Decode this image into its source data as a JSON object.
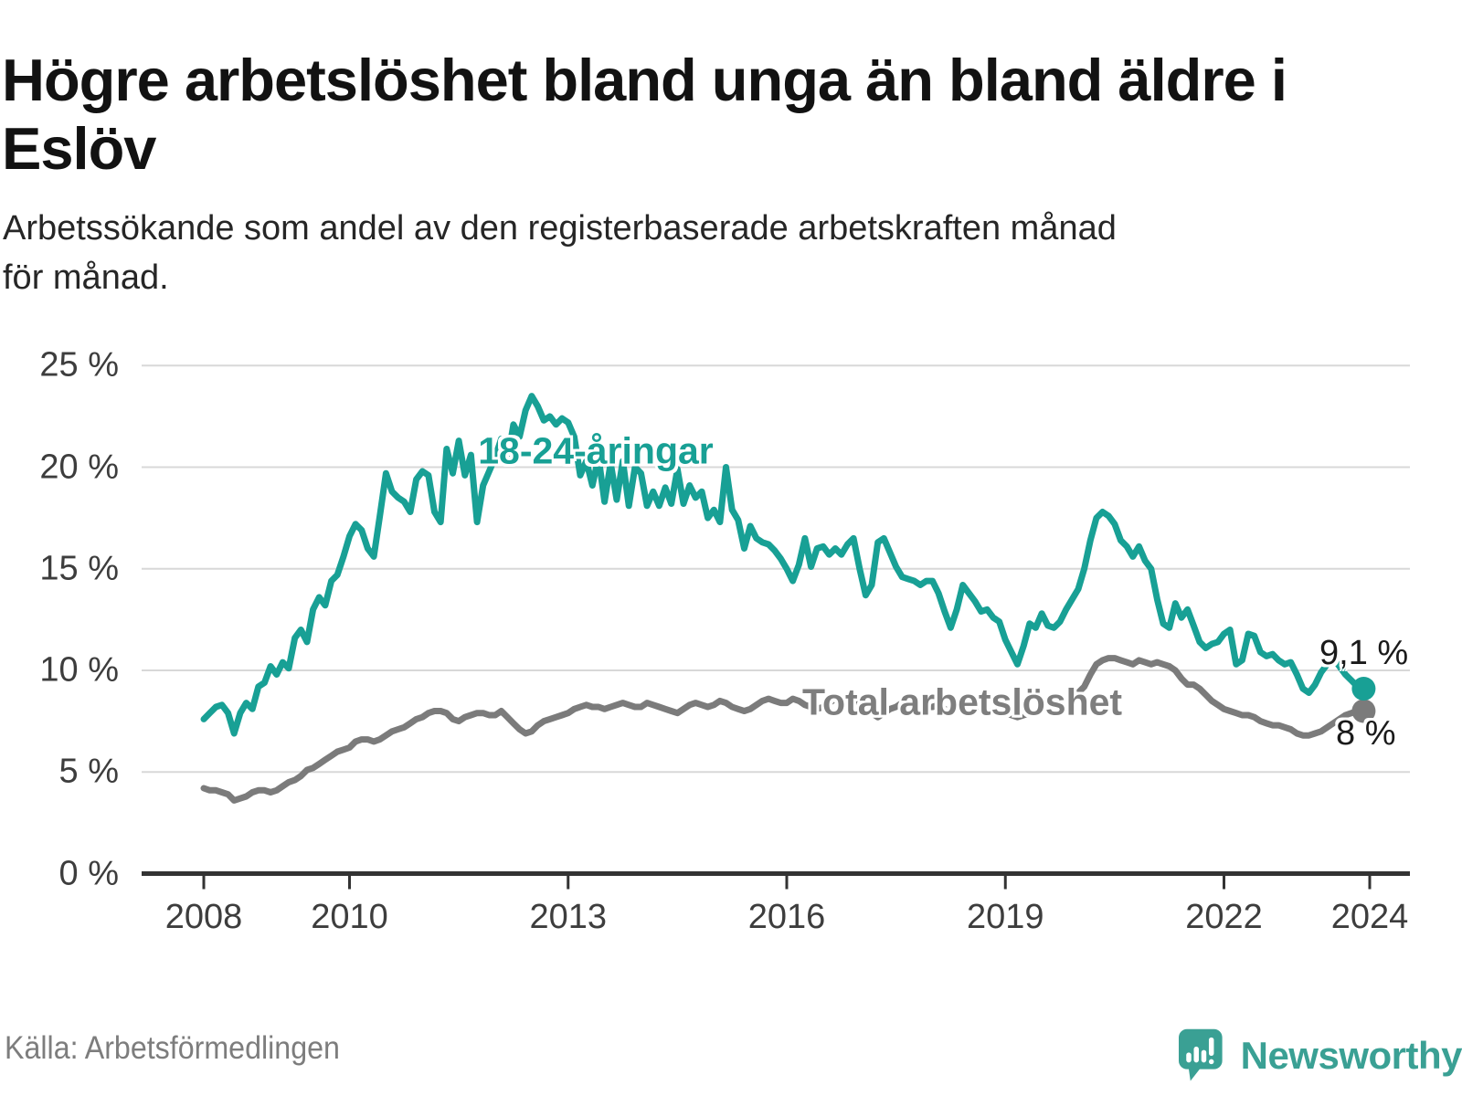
{
  "title": "Högre arbetslöshet bland unga än bland äldre i\nEslöv",
  "subtitle": "Arbetssökande som andel av den registerbaserade arbetskraften månad\nför månad.",
  "source": "Källa: Arbetsförmedlingen",
  "logo": {
    "text": "Newsworthy",
    "icon": "newsworthy-speech-bubble-bar-chart-icon"
  },
  "colors": {
    "young_line": "#18a095",
    "total_line": "#7b7b7b",
    "logo_teal": "#3aa094",
    "gridline": "#d8d8d8",
    "axis": "#333333",
    "tick_text": "#3d3d3d",
    "end_label_text": "#1a1a1a",
    "title_text": "#121212",
    "source_text": "#7d7d7d"
  },
  "chart_data": {
    "type": "line",
    "title": "Högre arbetslöshet bland unga än bland äldre i Eslöv",
    "xlabel": "",
    "ylabel": "",
    "x_unit": "month",
    "x_start": "2008-01",
    "x_end": "2023-12",
    "ylim": [
      0,
      25
    ],
    "xlim_years": [
      2007.15,
      2024.55
    ],
    "grid": "horizontal",
    "legend_position": "inline-labels",
    "y_tick_values": [
      0,
      5,
      10,
      15,
      20,
      25
    ],
    "y_tick_labels": [
      "0 %",
      "5 %",
      "10 %",
      "15 %",
      "20 %",
      "25 %"
    ],
    "x_tick_values": [
      2008,
      2010,
      2013,
      2016,
      2019,
      2022,
      2024
    ],
    "x_tick_labels": [
      "2008",
      "2010",
      "2013",
      "2016",
      "2019",
      "2022",
      "2024"
    ],
    "series": [
      {
        "name": "18-24-åringar",
        "color": "#18a095",
        "end_label": "9,1 %",
        "end_value": 9.1,
        "values": [
          7.6,
          7.9,
          8.2,
          8.3,
          7.9,
          6.9,
          7.9,
          8.4,
          8.1,
          9.2,
          9.4,
          10.2,
          9.8,
          10.4,
          10.1,
          11.6,
          12.0,
          11.4,
          13.0,
          13.6,
          13.2,
          14.4,
          14.7,
          15.6,
          16.6,
          17.2,
          16.9,
          16.0,
          15.6,
          17.6,
          19.7,
          18.8,
          18.5,
          18.3,
          17.8,
          19.4,
          19.8,
          19.6,
          17.8,
          17.3,
          20.9,
          19.7,
          21.3,
          19.6,
          20.6,
          17.3,
          19.1,
          19.8,
          20.5,
          21.4,
          20.3,
          22.1,
          21.5,
          22.8,
          23.5,
          23.0,
          22.3,
          22.5,
          22.1,
          22.4,
          22.2,
          21.5,
          19.6,
          20.3,
          19.1,
          20.5,
          18.3,
          20.2,
          18.4,
          20.3,
          18.1,
          20.0,
          19.7,
          18.1,
          18.8,
          18.1,
          19.0,
          18.2,
          19.9,
          18.2,
          19.1,
          18.5,
          18.8,
          17.5,
          17.9,
          17.3,
          20.0,
          17.9,
          17.4,
          16.0,
          17.1,
          16.5,
          16.3,
          16.2,
          15.9,
          15.5,
          15.0,
          14.4,
          15.2,
          16.5,
          15.1,
          16.0,
          16.1,
          15.7,
          16.0,
          15.7,
          16.2,
          16.5,
          15.0,
          13.7,
          14.2,
          16.3,
          16.5,
          15.8,
          15.1,
          14.6,
          14.5,
          14.4,
          14.2,
          14.4,
          14.4,
          13.8,
          12.9,
          12.1,
          13.0,
          14.2,
          13.8,
          13.4,
          12.9,
          13.0,
          12.6,
          12.4,
          11.5,
          10.9,
          10.3,
          11.2,
          12.3,
          12.1,
          12.8,
          12.2,
          12.1,
          12.4,
          13.0,
          13.5,
          14.0,
          15.0,
          16.4,
          17.5,
          17.8,
          17.6,
          17.2,
          16.4,
          16.1,
          15.6,
          16.1,
          15.4,
          15.0,
          13.5,
          12.3,
          12.1,
          13.3,
          12.6,
          13.0,
          12.2,
          11.4,
          11.1,
          11.3,
          11.4,
          11.8,
          12.0,
          10.3,
          10.5,
          11.8,
          11.7,
          10.9,
          10.7,
          10.8,
          10.5,
          10.3,
          10.4,
          9.8,
          9.1,
          8.9,
          9.3,
          9.9,
          10.3,
          10.6,
          10.2,
          9.8,
          9.5,
          9.2,
          9.1
        ]
      },
      {
        "name": "Total arbetslöshet",
        "color": "#7b7b7b",
        "end_label": "8 %",
        "end_value": 8.0,
        "values": [
          4.2,
          4.1,
          4.1,
          4.0,
          3.9,
          3.6,
          3.7,
          3.8,
          4.0,
          4.1,
          4.1,
          4.0,
          4.1,
          4.3,
          4.5,
          4.6,
          4.8,
          5.1,
          5.2,
          5.4,
          5.6,
          5.8,
          6.0,
          6.1,
          6.2,
          6.5,
          6.6,
          6.6,
          6.5,
          6.6,
          6.8,
          7.0,
          7.1,
          7.2,
          7.4,
          7.6,
          7.7,
          7.9,
          8.0,
          8.0,
          7.9,
          7.6,
          7.5,
          7.7,
          7.8,
          7.9,
          7.9,
          7.8,
          7.8,
          8.0,
          7.7,
          7.4,
          7.1,
          6.9,
          7.0,
          7.3,
          7.5,
          7.6,
          7.7,
          7.8,
          7.9,
          8.1,
          8.2,
          8.3,
          8.2,
          8.2,
          8.1,
          8.2,
          8.3,
          8.4,
          8.3,
          8.2,
          8.2,
          8.4,
          8.3,
          8.2,
          8.1,
          8.0,
          7.9,
          8.1,
          8.3,
          8.4,
          8.3,
          8.2,
          8.3,
          8.5,
          8.4,
          8.2,
          8.1,
          8.0,
          8.1,
          8.3,
          8.5,
          8.6,
          8.5,
          8.4,
          8.4,
          8.6,
          8.5,
          8.3,
          8.2,
          8.1,
          8.2,
          8.4,
          8.6,
          8.7,
          8.6,
          8.5,
          8.4,
          8.2,
          7.9,
          7.7,
          7.9,
          8.1,
          8.2,
          8.4,
          8.5,
          8.4,
          8.3,
          8.2,
          8.2,
          8.3,
          8.1,
          7.9,
          8.2,
          8.4,
          8.3,
          8.2,
          8.1,
          8.0,
          8.0,
          7.9,
          7.9,
          7.8,
          7.7,
          7.8,
          7.9,
          8.0,
          8.1,
          8.0,
          7.9,
          8.0,
          8.2,
          8.6,
          8.9,
          9.2,
          9.8,
          10.3,
          10.5,
          10.6,
          10.6,
          10.5,
          10.4,
          10.3,
          10.5,
          10.4,
          10.3,
          10.4,
          10.3,
          10.2,
          10.0,
          9.6,
          9.3,
          9.3,
          9.1,
          8.8,
          8.5,
          8.3,
          8.1,
          8.0,
          7.9,
          7.8,
          7.8,
          7.7,
          7.5,
          7.4,
          7.3,
          7.3,
          7.2,
          7.1,
          6.9,
          6.8,
          6.8,
          6.9,
          7.0,
          7.2,
          7.4,
          7.6,
          7.8,
          7.9,
          8.0,
          8.0
        ]
      }
    ]
  }
}
